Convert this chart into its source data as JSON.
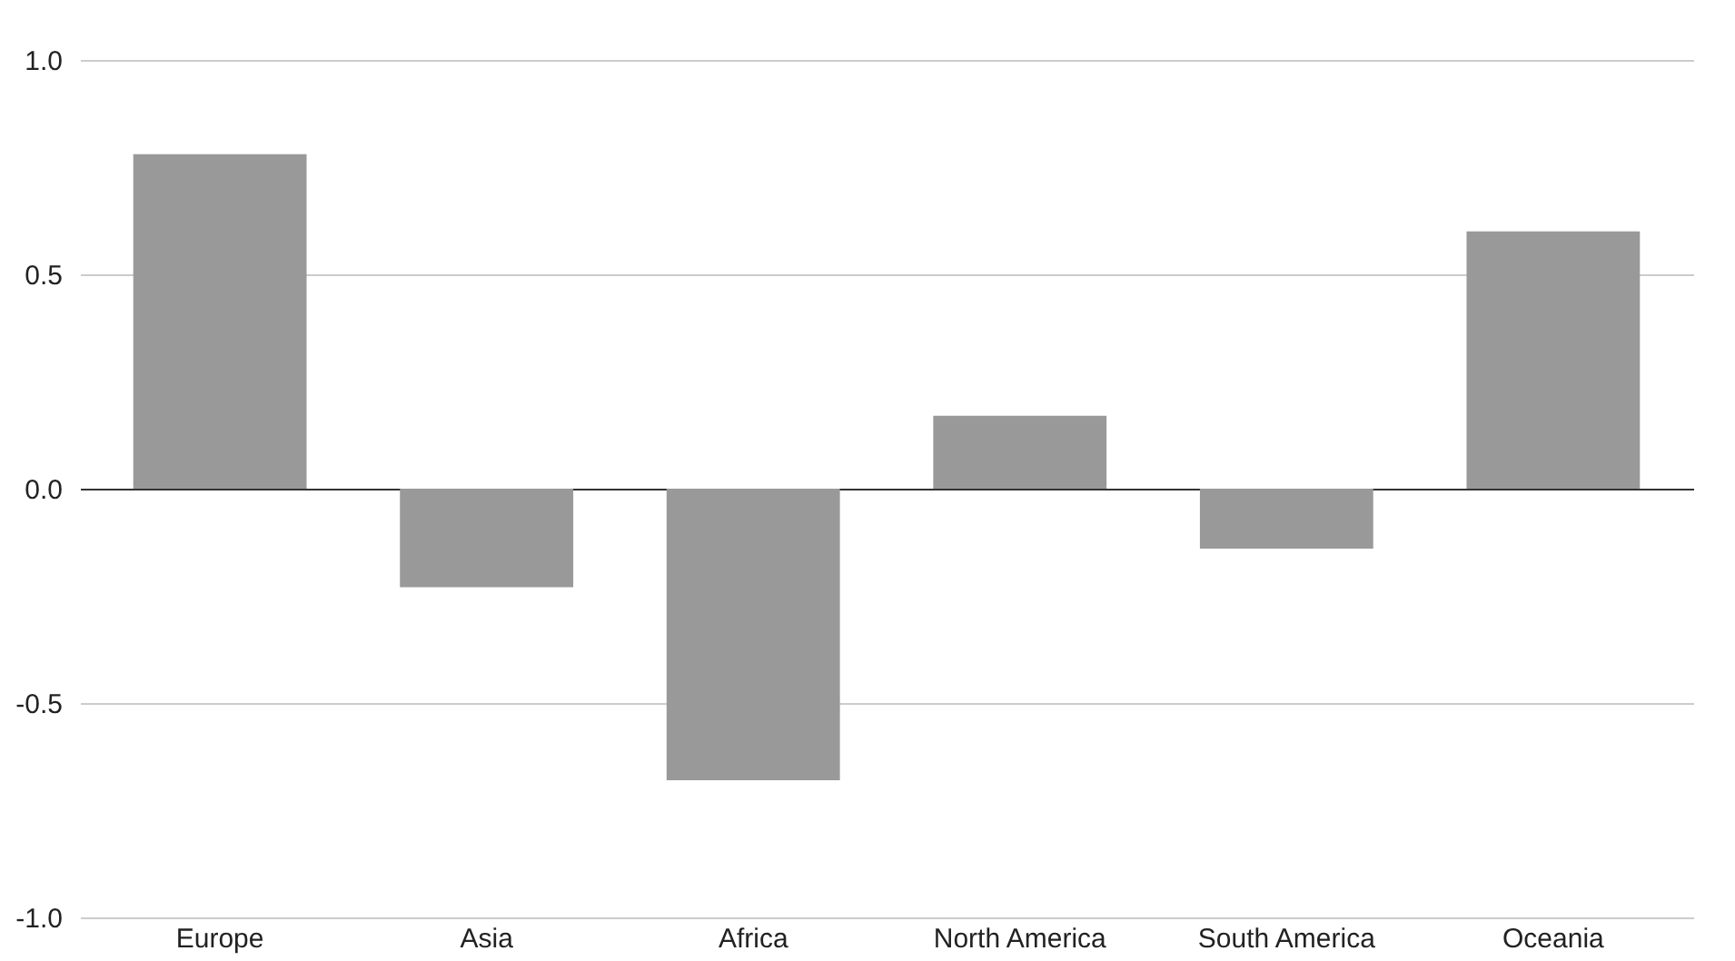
{
  "chart_data": {
    "type": "bar",
    "categories": [
      "Europe",
      "Asia",
      "Africa",
      "North America",
      "South America",
      "Oceania"
    ],
    "values": [
      0.78,
      -0.23,
      -0.68,
      0.17,
      -0.14,
      0.6
    ],
    "color": "#999999",
    "ylim": [
      -1.0,
      1.0
    ],
    "yticks": [
      {
        "value": -1,
        "label": "-1.0"
      },
      {
        "value": -0.5,
        "label": "-0.5"
      },
      {
        "value": 0,
        "label": "0.0"
      },
      {
        "value": 0.5,
        "label": "0.5"
      },
      {
        "value": 1,
        "label": "1.0"
      }
    ],
    "grid": "y"
  }
}
